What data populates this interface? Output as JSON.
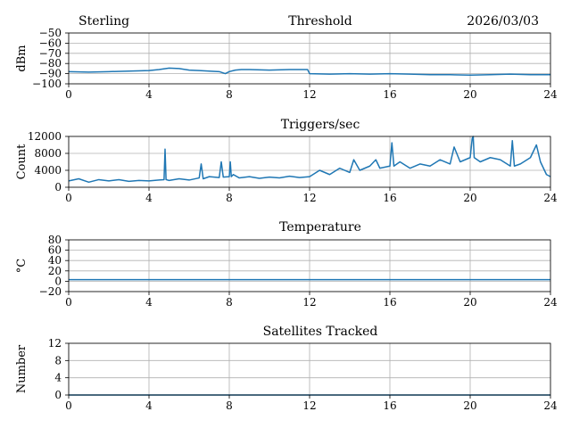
{
  "header": {
    "station": "Sterling",
    "date": "2026/03/03"
  },
  "colors": {
    "series": "#1f77b4",
    "grid": "#b0b0b0",
    "axis": "#000000",
    "background": "#ffffff"
  },
  "chart_data": [
    {
      "type": "line",
      "title": "Threshold",
      "xlabel": "",
      "ylabel": "dBm",
      "xlim": [
        0,
        24
      ],
      "ylim": [
        -100,
        -50
      ],
      "xticks": [
        0,
        4,
        8,
        12,
        16,
        20,
        24
      ],
      "yticks": [
        -100,
        -90,
        -80,
        -70,
        -60,
        -50
      ],
      "ytick_labels": [
        "−100",
        "−90",
        "−80",
        "−70",
        "−60",
        "−50"
      ],
      "grid": true,
      "series": [
        {
          "name": "Threshold",
          "x": [
            0,
            1,
            2,
            3,
            4,
            4.5,
            5,
            5.5,
            6,
            6.5,
            7,
            7.5,
            7.8,
            8,
            8.3,
            8.6,
            9,
            10,
            11,
            11.9,
            12,
            13,
            14,
            15,
            16,
            17,
            18,
            19,
            20,
            21,
            22,
            23,
            24
          ],
          "y": [
            -88,
            -88.5,
            -88,
            -87.5,
            -87,
            -86,
            -84.5,
            -85,
            -86.5,
            -87,
            -87.5,
            -88,
            -90,
            -88,
            -86.5,
            -86,
            -86,
            -86.5,
            -86,
            -86,
            -90,
            -90.5,
            -90,
            -90.5,
            -90,
            -90.5,
            -91,
            -91,
            -91.5,
            -91,
            -90.5,
            -91,
            -91
          ]
        }
      ]
    },
    {
      "type": "line",
      "title": "Triggers/sec",
      "xlabel": "",
      "ylabel": "Count",
      "xlim": [
        0,
        24
      ],
      "ylim": [
        0,
        12000
      ],
      "xticks": [
        0,
        4,
        8,
        12,
        16,
        20,
        24
      ],
      "yticks": [
        0,
        4000,
        8000,
        12000
      ],
      "ytick_labels": [
        "0",
        "4000",
        "8000",
        "12000"
      ],
      "grid": true,
      "series": [
        {
          "name": "Triggers/sec",
          "x": [
            0,
            0.5,
            1,
            1.5,
            2,
            2.5,
            3,
            3.5,
            4,
            4.5,
            4.75,
            4.8,
            4.85,
            5,
            5.5,
            6,
            6.5,
            6.6,
            6.7,
            7,
            7.5,
            7.6,
            7.7,
            8,
            8.05,
            8.1,
            8.2,
            8.5,
            9,
            9.5,
            10,
            10.5,
            11,
            11.5,
            12,
            12.5,
            13,
            13.5,
            14,
            14.2,
            14.5,
            15,
            15.3,
            15.5,
            16,
            16.1,
            16.2,
            16.5,
            17,
            17.5,
            18,
            18.5,
            19,
            19.2,
            19.5,
            20,
            20.1,
            20.15,
            20.2,
            20.5,
            21,
            21.5,
            22,
            22.1,
            22.2,
            22.5,
            23,
            23.3,
            23.5,
            23.8,
            24
          ],
          "y": [
            1500,
            2000,
            1200,
            1800,
            1500,
            1800,
            1400,
            1600,
            1500,
            1700,
            1800,
            9000,
            1800,
            1600,
            2000,
            1700,
            2200,
            5500,
            2000,
            2500,
            2300,
            6000,
            2400,
            2500,
            6000,
            2500,
            3000,
            2200,
            2500,
            2100,
            2400,
            2200,
            2600,
            2300,
            2500,
            4000,
            3000,
            4500,
            3500,
            6500,
            4000,
            5000,
            6500,
            4500,
            5000,
            10500,
            5000,
            6000,
            4500,
            5500,
            5000,
            6500,
            5500,
            9500,
            6000,
            7000,
            11500,
            12000,
            7000,
            6000,
            7000,
            6500,
            5000,
            11000,
            5000,
            5500,
            7000,
            10000,
            6000,
            3000,
            2500
          ]
        }
      ]
    },
    {
      "type": "line",
      "title": "Temperature",
      "xlabel": "",
      "ylabel": "°C",
      "xlim": [
        0,
        24
      ],
      "ylim": [
        -20,
        80
      ],
      "xticks": [
        0,
        4,
        8,
        12,
        16,
        20,
        24
      ],
      "yticks": [
        -20,
        0,
        20,
        40,
        60,
        80
      ],
      "ytick_labels": [
        "−20",
        "0",
        "20",
        "40",
        "60",
        "80"
      ],
      "grid": true,
      "series": [
        {
          "name": "Temperature",
          "x": [
            0,
            24
          ],
          "y": [
            3,
            3
          ]
        }
      ]
    },
    {
      "type": "line",
      "title": "Satellites Tracked",
      "xlabel": "",
      "ylabel": "Number",
      "xlim": [
        0,
        24
      ],
      "ylim": [
        0,
        12
      ],
      "xticks": [
        0,
        4,
        8,
        12,
        16,
        20,
        24
      ],
      "yticks": [
        0,
        4,
        8,
        12
      ],
      "ytick_labels": [
        "0",
        "4",
        "8",
        "12"
      ],
      "grid": true,
      "series": [
        {
          "name": "Satellites",
          "x": [
            0,
            24
          ],
          "y": [
            0,
            0
          ]
        }
      ]
    }
  ]
}
